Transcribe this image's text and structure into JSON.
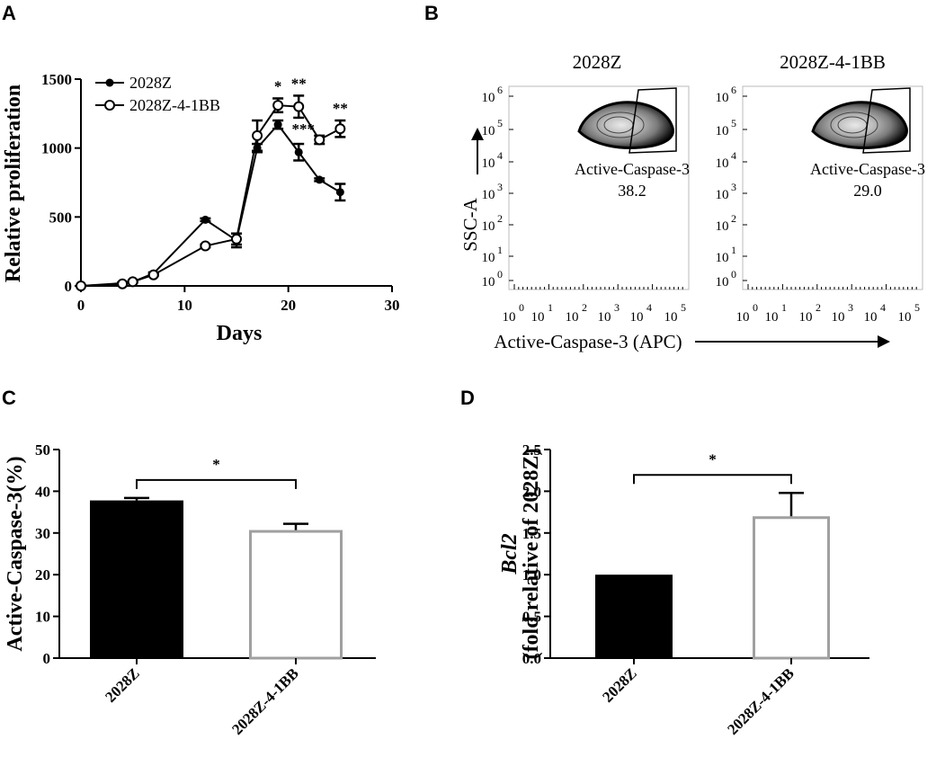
{
  "panels": {
    "a": "A",
    "b": "B",
    "c": "C",
    "d": "D"
  },
  "chart_data": [
    {
      "id": "A",
      "type": "line",
      "xlabel": "Days",
      "ylabel": "Relative proliferation",
      "xlim": [
        0,
        30
      ],
      "ylim": [
        0,
        1500
      ],
      "xticks": [
        "0",
        "10",
        "20",
        "30"
      ],
      "yticks": [
        "0",
        "500",
        "1000",
        "1500"
      ],
      "legend_position": "top-left",
      "series": [
        {
          "name": "2028Z",
          "marker": "filled-circle",
          "x": [
            0,
            4,
            5,
            7,
            12,
            15,
            17,
            19,
            21,
            23,
            25
          ],
          "y": [
            0,
            20,
            30,
            90,
            480,
            330,
            1000,
            1170,
            970,
            770,
            680
          ],
          "err": [
            0,
            5,
            5,
            8,
            10,
            50,
            30,
            30,
            60,
            10,
            60
          ]
        },
        {
          "name": "2028Z-4-1BB",
          "marker": "open-circle",
          "x": [
            0,
            4,
            5,
            7,
            12,
            15,
            17,
            19,
            21,
            23,
            25
          ],
          "y": [
            0,
            15,
            30,
            80,
            290,
            340,
            1090,
            1310,
            1300,
            1060,
            1140
          ],
          "err": [
            0,
            5,
            5,
            8,
            10,
            40,
            110,
            50,
            80,
            30,
            60
          ]
        }
      ],
      "annotations": [
        {
          "text": "*",
          "x": 19
        },
        {
          "text": "**",
          "x": 21
        },
        {
          "text": "***",
          "x": 23
        },
        {
          "text": "**",
          "x": 25
        }
      ]
    },
    {
      "id": "B",
      "type": "scatter",
      "subtype": "flow-cytometry",
      "xlabel": "Active-Caspase-3 (APC)",
      "ylabel": "SSC-A",
      "panels": [
        {
          "title": "2028Z",
          "gate_label": "Active-Caspase-3",
          "value": "38.2"
        },
        {
          "title": "2028Z-4-1BB",
          "gate_label": "Active-Caspase-3",
          "value": "29.0"
        }
      ],
      "yticks": [
        "10",
        "10",
        "10",
        "10",
        "10",
        "10",
        "10"
      ],
      "yticks_exp": [
        "6",
        "5",
        "4",
        "3",
        "2",
        "1",
        "0"
      ],
      "xticks": [
        "10",
        "10",
        "10",
        "10",
        "10",
        "10"
      ],
      "xticks_exp": [
        "0",
        "1",
        "2",
        "3",
        "4",
        "5"
      ]
    },
    {
      "id": "C",
      "type": "bar",
      "categories": [
        "2028Z",
        "2028Z-4-1BB"
      ],
      "values": [
        37.8,
        30.7
      ],
      "errors": [
        0.6,
        1.5
      ],
      "colors": [
        "#000000",
        "#ffffff"
      ],
      "edge_colors": [
        "#000000",
        "#a0a0a0"
      ],
      "ylabel": "Active-Caspase-3(%)",
      "ylim": [
        0,
        50
      ],
      "yticks": [
        "0",
        "10",
        "20",
        "30",
        "40",
        "50"
      ],
      "significance": "*"
    },
    {
      "id": "D",
      "type": "bar",
      "categories": [
        "2028Z",
        "2028Z-4-1BB"
      ],
      "values": [
        1.0,
        1.7
      ],
      "errors": [
        0.0,
        0.28
      ],
      "colors": [
        "#000000",
        "#ffffff"
      ],
      "edge_colors": [
        "#000000",
        "#a0a0a0"
      ],
      "ylabel_italic": "Bcl2",
      "ylabel": "(fold relative of 2028Z)",
      "ylim": [
        0,
        2.5
      ],
      "yticks": [
        "0.0",
        "0.5",
        "1.0",
        "1.5",
        "2.0",
        "2.5"
      ],
      "significance": "*"
    }
  ]
}
